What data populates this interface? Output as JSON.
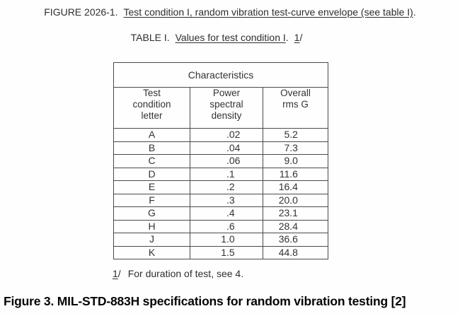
{
  "figure_heading": {
    "prefix": "FIGURE 2026-1.",
    "underlined": "Test condition I, random vibration test-curve envelope (see table I)",
    "suffix": "."
  },
  "table_title": {
    "prefix": "TABLE I.",
    "underlined": "Values for test condition I",
    "suffix": ".",
    "footnote_ref_underlined": "1",
    "footnote_ref_rest": "/"
  },
  "table": {
    "group_header": "Characteristics",
    "headers": [
      [
        "Test",
        "condition",
        "letter"
      ],
      [
        "Power",
        "spectral",
        "density"
      ],
      [
        "Overall",
        "rms G"
      ]
    ],
    "rows": [
      {
        "letter": "A",
        "psd": ".02",
        "rms": "5.2"
      },
      {
        "letter": "B",
        "psd": ".04",
        "rms": "7.3"
      },
      {
        "letter": "C",
        "psd": ".06",
        "rms": "9.0"
      },
      {
        "letter": "D",
        "psd": ".1",
        "rms": "11.6"
      },
      {
        "letter": "E",
        "psd": ".2",
        "rms": "16.4"
      },
      {
        "letter": "F",
        "psd": ".3",
        "rms": "20.0"
      },
      {
        "letter": "G",
        "psd": ".4",
        "rms": "23.1"
      },
      {
        "letter": "H",
        "psd": ".6",
        "rms": "28.4"
      },
      {
        "letter": "J",
        "psd": "1.0",
        "rms": "36.6"
      },
      {
        "letter": "K",
        "psd": "1.5",
        "rms": "44.8"
      }
    ]
  },
  "footnote": {
    "marker_underlined": "1",
    "marker_rest": "/",
    "text": "For duration of test, see 4."
  },
  "caption": "Figure 3. MIL-STD-883H specifications for random vibration testing [2]",
  "colors": {
    "text": "#2e2e2e",
    "border": "#4a4a4a",
    "caption": "#050505",
    "background": "#fefefe"
  },
  "chart_data": {
    "type": "table",
    "title": "TABLE I. Values for test condition I.",
    "group_header": "Characteristics",
    "columns": [
      "Test condition letter",
      "Power spectral density",
      "Overall rms G"
    ],
    "rows": [
      [
        "A",
        0.02,
        5.2
      ],
      [
        "B",
        0.04,
        7.3
      ],
      [
        "C",
        0.06,
        9.0
      ],
      [
        "D",
        0.1,
        11.6
      ],
      [
        "E",
        0.2,
        16.4
      ],
      [
        "F",
        0.3,
        20.0
      ],
      [
        "G",
        0.4,
        23.1
      ],
      [
        "H",
        0.6,
        28.4
      ],
      [
        "J",
        1.0,
        36.6
      ],
      [
        "K",
        1.5,
        44.8
      ]
    ]
  }
}
